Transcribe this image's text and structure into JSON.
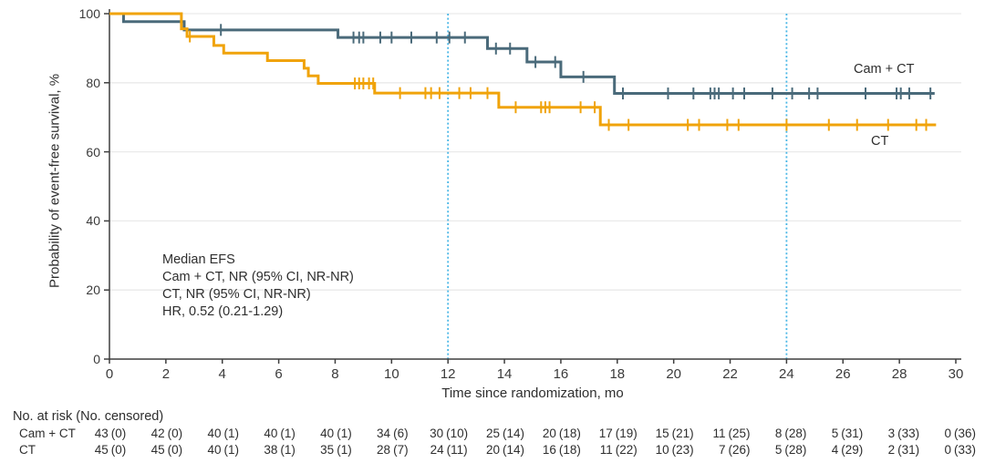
{
  "figure": {
    "y_axis_label": "Probability of event-free survival, %",
    "x_axis_label": "Time since randomization, mo",
    "annotation": {
      "lines": [
        "Median EFS",
        "Cam + CT, NR (95% CI, NR-NR)",
        "CT, NR (95% CI, NR-NR)",
        "HR, 0.52 (0.21-1.29)"
      ]
    },
    "legend": {
      "camct": "Cam + CT",
      "ct": "CT"
    }
  },
  "chart_data": {
    "type": "line",
    "subtype": "kaplan-meier-step",
    "title": "",
    "xlabel": "Time since randomization, mo",
    "ylabel": "Probability of event-free survival, %",
    "xlim": [
      0,
      30
    ],
    "ylim": [
      0,
      100
    ],
    "x_ticks": [
      0,
      2,
      4,
      6,
      8,
      10,
      12,
      14,
      16,
      18,
      20,
      22,
      24,
      26,
      28,
      30
    ],
    "y_ticks": [
      0,
      20,
      40,
      60,
      80,
      100
    ],
    "grid": "horizontal-light",
    "reference_lines_x": [
      12,
      24
    ],
    "legend_position": "right-inline",
    "series": [
      {
        "name": "Cam + CT",
        "color": "#4a6a7a",
        "steps": [
          [
            0,
            100
          ],
          [
            0.5,
            97.7
          ],
          [
            2.65,
            95.3
          ],
          [
            8.1,
            93.1
          ],
          [
            13.4,
            89.9
          ],
          [
            14.8,
            86.0
          ],
          [
            16.0,
            81.7
          ],
          [
            17.9,
            76.9
          ],
          [
            29.25,
            76.9
          ]
        ],
        "censor_times": [
          3.95,
          8.65,
          8.85,
          9.0,
          9.6,
          10.0,
          10.7,
          11.6,
          12.05,
          12.6,
          13.7,
          14.2,
          15.1,
          15.8,
          16.8,
          18.2,
          19.8,
          20.7,
          21.3,
          21.45,
          21.6,
          22.1,
          22.5,
          23.5,
          24.2,
          24.8,
          25.1,
          26.8,
          27.9,
          28.05,
          28.35,
          29.1
        ]
      },
      {
        "name": "CT",
        "color": "#f0a30a",
        "steps": [
          [
            0,
            100
          ],
          [
            2.55,
            95.6
          ],
          [
            2.75,
            93.4
          ],
          [
            3.7,
            90.8
          ],
          [
            4.05,
            88.6
          ],
          [
            5.6,
            86.4
          ],
          [
            6.9,
            84.2
          ],
          [
            7.05,
            82.0
          ],
          [
            7.4,
            79.8
          ],
          [
            9.4,
            77.0
          ],
          [
            13.8,
            72.9
          ],
          [
            17.4,
            67.8
          ],
          [
            29.3,
            67.8
          ]
        ],
        "censor_times": [
          2.85,
          8.7,
          8.85,
          9.0,
          9.2,
          9.35,
          10.3,
          11.2,
          11.4,
          11.7,
          12.4,
          12.8,
          13.4,
          14.4,
          15.3,
          15.45,
          15.6,
          16.7,
          17.2,
          17.7,
          18.4,
          20.5,
          20.9,
          21.9,
          22.3,
          24.0,
          25.5,
          26.5,
          27.6,
          28.6,
          28.95
        ]
      }
    ]
  },
  "risk_table": {
    "header": "No. at risk (No. censored)",
    "times": [
      0,
      2,
      4,
      6,
      8,
      10,
      12,
      14,
      16,
      18,
      20,
      22,
      24,
      26,
      28,
      30
    ],
    "rows": [
      {
        "label": "Cam + CT",
        "values": [
          "43 (0)",
          "42 (0)",
          "40 (1)",
          "40 (1)",
          "40 (1)",
          "34 (6)",
          "30 (10)",
          "25 (14)",
          "20 (18)",
          "17 (19)",
          "15 (21)",
          "11 (25)",
          "8 (28)",
          "5 (31)",
          "3 (33)",
          "0 (36)"
        ]
      },
      {
        "label": "CT",
        "values": [
          "45 (0)",
          "45 (0)",
          "40 (1)",
          "38 (1)",
          "35 (1)",
          "28 (7)",
          "24 (11)",
          "20 (14)",
          "16 (18)",
          "11 (22)",
          "10 (23)",
          "7 (26)",
          "5 (28)",
          "4 (29)",
          "2 (31)",
          "0 (33)"
        ]
      }
    ]
  },
  "colors": {
    "camct": "#4a6a7a",
    "ct": "#f0a30a",
    "reference_line": "#48b6e6",
    "gridline": "#eaeaea",
    "axis": "#3f3f3f",
    "text": "#2e2e2e",
    "background": "#ffffff"
  }
}
